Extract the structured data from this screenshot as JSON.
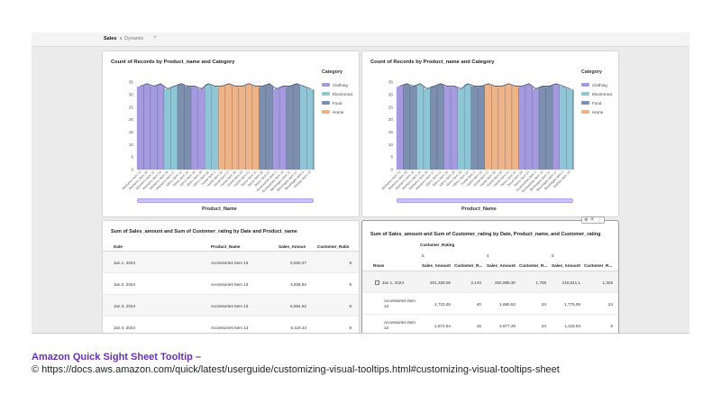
{
  "tabs": [
    {
      "label": "Sales",
      "active": true
    },
    {
      "label": "Dynamic",
      "active": false
    }
  ],
  "colors": {
    "Clothing": "#a59ae0",
    "Electronics": "#8ec6d6",
    "Food": "#7d8fae",
    "Home": "#eeb487"
  },
  "chart_left": {
    "title": "Count of Records by Product_name and Category",
    "legend_title": "Category",
    "legend": [
      "Clothing",
      "Electronics",
      "Food",
      "Home"
    ],
    "x_title": "Product_Name"
  },
  "chart_right": {
    "title": "Count of Records by Product_name and Category",
    "legend_title": "Category",
    "legend": [
      "Clothing",
      "Electronics",
      "Food",
      "Home"
    ],
    "x_title": "Product_Name"
  },
  "chart_data": [
    {
      "type": "area",
      "title": "Count of Records by Product_name and Category",
      "xlabel": "Product_Name",
      "ylabel": "",
      "ylim": [
        0,
        35
      ],
      "yticks": [
        "0",
        "5",
        "10",
        "15",
        "20",
        "25",
        "30",
        "35"
      ],
      "legend": "right",
      "categories": [
        "Women's Item 12",
        "Women's Item 10",
        "Women's Item 11",
        "Women's Item 14",
        "Women's Item 15",
        "Women's Item 17",
        "Men's Item 12",
        "Men's Item 16",
        "Men's Item 18",
        "Men's Item 19",
        "Men's Item 22",
        "Home Item 1",
        "Home Item 14",
        "Home Item 17",
        "Home Item 10",
        "Home Item 33",
        "Home Item 41",
        "Decor Item 11",
        "Decor Item 33",
        "Decor Item 37",
        "Accessories Item 1",
        "Accessories Item 13",
        "Beverages Item 11",
        "Beverages Item 17",
        "Beverages Item 2",
        "Kitchen Item 13"
      ],
      "series_category": [
        "Clothing",
        "Clothing",
        "Clothing",
        "Clothing",
        "Electronics",
        "Electronics",
        "Food",
        "Food",
        "Clothing",
        "Clothing",
        "Electronics",
        "Electronics",
        "Home",
        "Home",
        "Home",
        "Home",
        "Home",
        "Home",
        "Food",
        "Food",
        "Clothing",
        "Clothing",
        "Food",
        "Food",
        "Electronics",
        "Electronics"
      ],
      "values": [
        33,
        34,
        33,
        34,
        32,
        33,
        34,
        33,
        33,
        32,
        34,
        33,
        33,
        34,
        33,
        33,
        34,
        33,
        33,
        34,
        32,
        33,
        33,
        34,
        33,
        32
      ]
    },
    {
      "type": "area",
      "title": "Count of Records by Product_name and Category",
      "xlabel": "Product_Name",
      "ylabel": "",
      "ylim": [
        0,
        35
      ],
      "yticks": [
        "0",
        "5",
        "10",
        "15",
        "20",
        "25",
        "30",
        "35"
      ],
      "legend": "right",
      "categories": [
        "Women's Item 12",
        "Women's Item 10",
        "Women's Item 11",
        "Women's Item 14",
        "Women's Item 15",
        "Women's Item 17",
        "Men's Item 12",
        "Men's Item 16",
        "Men's Item 18",
        "Men's Item 19",
        "Men's Item 22",
        "Home Item 1",
        "Home Item 14",
        "Home Item 17",
        "Home Item 10",
        "Home Item 33",
        "Home Item 41",
        "Decor Item 11",
        "Decor Item 33",
        "Decor Item 37",
        "Accessories Item 1",
        "Accessories Item 13",
        "Beverages Item 11",
        "Beverages Item 17",
        "Beverages Item 2",
        "Kitchen Item 13"
      ],
      "series_category": [
        "Clothing",
        "Food",
        "Food",
        "Electronics",
        "Electronics",
        "Food",
        "Food",
        "Clothing",
        "Clothing",
        "Electronics",
        "Electronics",
        "Food",
        "Food",
        "Home",
        "Home",
        "Home",
        "Home",
        "Home",
        "Clothing",
        "Clothing",
        "Clothing",
        "Food",
        "Food",
        "Clothing",
        "Electronics",
        "Electronics"
      ],
      "values": [
        33,
        34,
        33,
        34,
        32,
        33,
        34,
        33,
        33,
        32,
        34,
        33,
        33,
        34,
        33,
        33,
        34,
        33,
        33,
        34,
        32,
        33,
        33,
        34,
        33,
        32
      ]
    }
  ],
  "table_left": {
    "title": "Sum of Sales_amount and Sum of Customer_rating by Date and Product_name",
    "headers": [
      "Date",
      "Product_Name",
      "Sales_Amount",
      "Customer_Ratin"
    ],
    "rows": [
      [
        "Jan 1, 2024",
        "Accessories Item 13",
        "6,920.37",
        "9"
      ],
      [
        "Jan 2, 2024",
        "Accessories Item 13",
        "4,836.94",
        "9"
      ],
      [
        "Jan 3, 2024",
        "Accessories Item 13",
        "5,664.62",
        "9"
      ],
      [
        "Jan 4, 2024",
        "Accessories Item 13",
        "5,119.34",
        "9"
      ]
    ]
  },
  "table_right": {
    "title": "Sum of Sales_amount and Sum of Customer_rating by Date, Product_name, and Customer_rating",
    "group_header": "Customer_Rating",
    "groups": [
      "5",
      "4",
      "5"
    ],
    "rows_label": "Rows",
    "sub_headers": [
      "Sales_Amount",
      "Customer_R...",
      "Sales_Amount",
      "Customer_R...",
      "Sales_Amount",
      "Customer_R..."
    ],
    "rows": [
      {
        "label": "Jan 1, 2024",
        "values": [
          "201,328.05",
          "2,140",
          "282,999.30",
          "1,708",
          "216,511.1",
          "1,326"
        ]
      },
      {
        "label": "Accessories Item 13",
        "values": [
          "1,723.45",
          "40",
          "1,690.52",
          "24",
          "1,775.08",
          "24"
        ]
      },
      {
        "label": "Accessories Item 13",
        "values": [
          "1,572.54",
          "15",
          "3,677.29",
          "24",
          "1,115.53",
          "6"
        ]
      }
    ]
  },
  "caption": {
    "title": "Amazon Quick Sight Sheet Tooltip –",
    "url": "© https://docs.aws.amazon.com/quick/latest/userguide/customizing-visual-tooltips.html#customizing-visual-tooltips-sheet"
  }
}
